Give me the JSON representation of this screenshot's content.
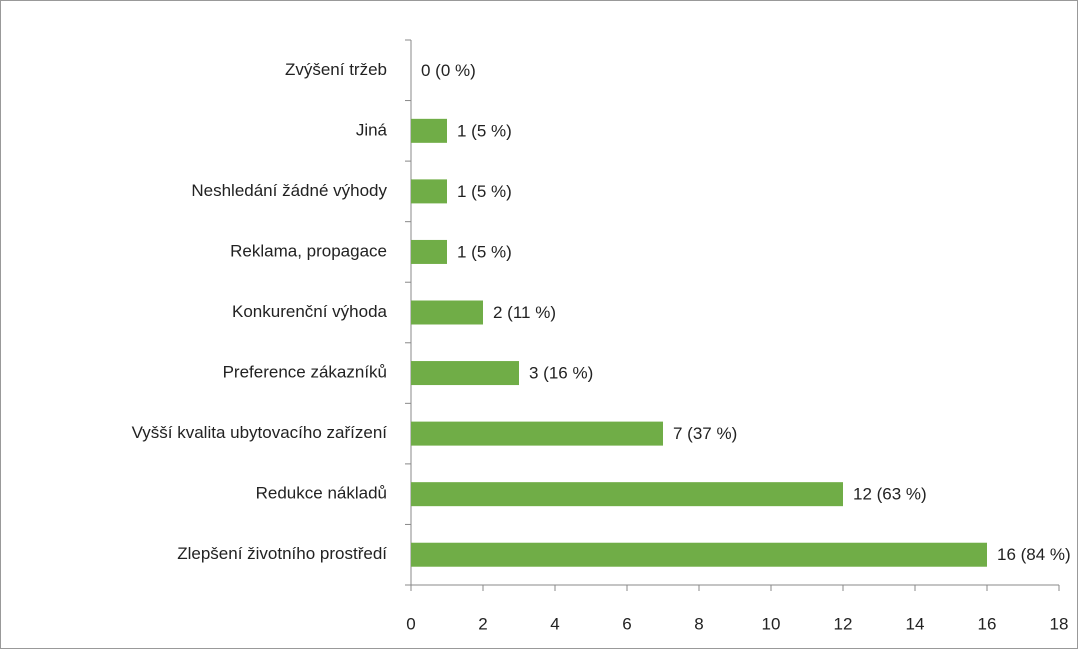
{
  "chart_data": {
    "type": "hbar",
    "categories": [
      "Zvýšení tržeb",
      "Jiná",
      "Neshledání žádné výhody",
      "Reklama, propagace",
      "Konkurenční výhoda",
      "Preference zákazníků",
      "Vyšší kvalita ubytovacího zařízení",
      "Redukce nákladů",
      "Zlepšení životního prostředí"
    ],
    "values": [
      0,
      1,
      1,
      1,
      2,
      3,
      7,
      12,
      16
    ],
    "value_labels": [
      "0 (0 %)",
      "1 (5 %)",
      "1 (5 %)",
      "1 (5 %)",
      "2 (11 %)",
      "3 (16 %)",
      "7 (37 %)",
      "12 (63 %)",
      "16 (84 %)"
    ],
    "color": "#70ad47",
    "xlim": [
      0,
      18
    ],
    "xticks": [
      0,
      2,
      4,
      6,
      8,
      10,
      12,
      14,
      16,
      18
    ],
    "grid": false
  }
}
